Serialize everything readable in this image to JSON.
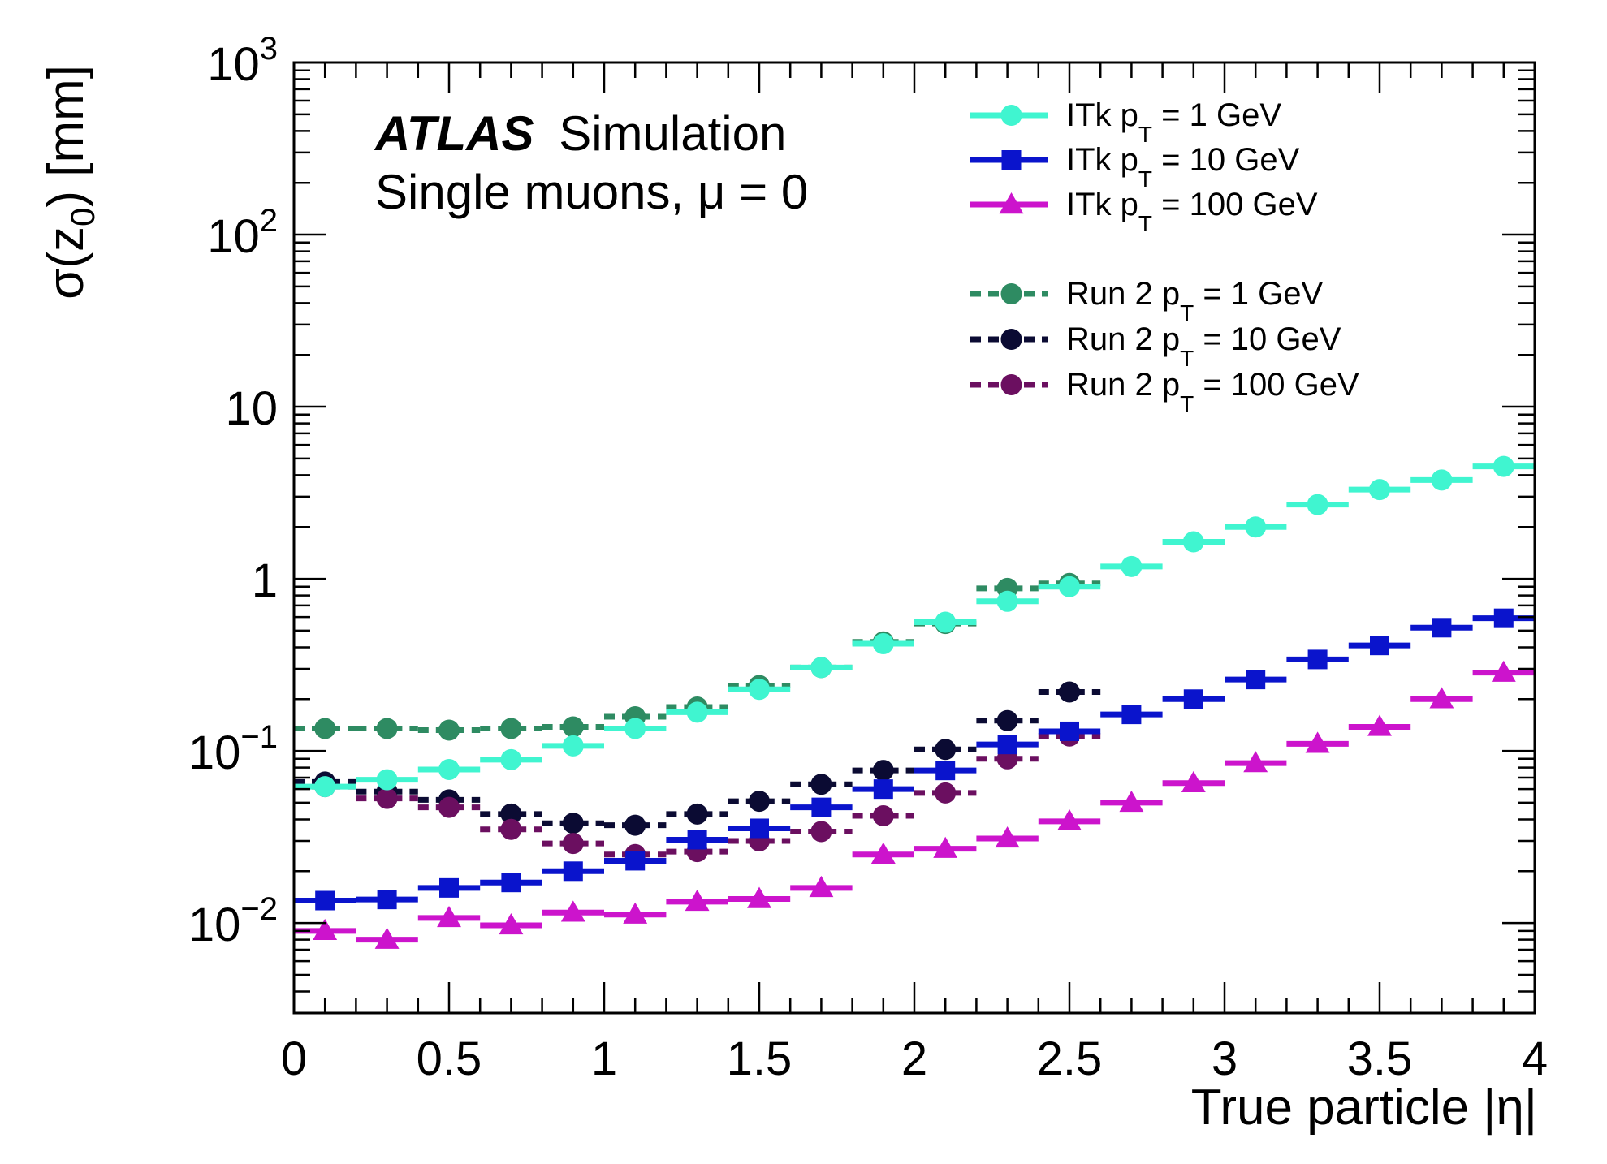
{
  "chart_data": {
    "type": "line",
    "title": "",
    "ylabel": "σ(z_0) [mm]",
    "xlabel": "True particle |η|",
    "xlim": [
      0,
      4
    ],
    "ylim": [
      0.003,
      1000
    ],
    "yscale": "log",
    "x_tick_labels": [
      "0",
      "0.5",
      "1",
      "1.5",
      "2",
      "2.5",
      "3",
      "3.5",
      "4"
    ],
    "y_tick_labels": [
      {
        "base": "10",
        "exp": "3"
      },
      {
        "base": "10",
        "exp": "2"
      },
      {
        "base": "10",
        "exp": ""
      },
      {
        "base": "1",
        "exp": ""
      },
      {
        "base": "10",
        "exp": "−1"
      },
      {
        "base": "10",
        "exp": "−2"
      }
    ],
    "annotations": {
      "atlas": "ATLAS",
      "simulation": "Simulation",
      "subtitle": "Single muons, μ = 0"
    },
    "bin_width": 0.2,
    "series": [
      {
        "name": "ITk  p_T = 1 GeV",
        "label_prefix": "ITk  p",
        "label_sub": "T",
        "label_suffix": " = 1 GeV",
        "color": "#40f5d0",
        "marker": "circle",
        "style": "solid",
        "x": [
          0.1,
          0.3,
          0.5,
          0.7,
          0.9,
          1.1,
          1.3,
          1.5,
          1.7,
          1.9,
          2.1,
          2.3,
          2.5,
          2.7,
          2.9,
          3.1,
          3.3,
          3.5,
          3.7,
          3.9
        ],
        "values": [
          0.062,
          0.068,
          0.078,
          0.089,
          0.107,
          0.135,
          0.168,
          0.228,
          0.305,
          0.42,
          0.56,
          0.74,
          0.9,
          1.18,
          1.64,
          2.0,
          2.7,
          3.3,
          3.75,
          4.5
        ]
      },
      {
        "name": "ITk  p_T = 10 GeV",
        "label_prefix": "ITk  p",
        "label_sub": "T",
        "label_suffix": " = 10 GeV",
        "color": "#0a14cc",
        "marker": "square",
        "style": "solid",
        "x": [
          0.1,
          0.3,
          0.5,
          0.7,
          0.9,
          1.1,
          1.3,
          1.5,
          1.7,
          1.9,
          2.1,
          2.3,
          2.5,
          2.7,
          2.9,
          3.1,
          3.3,
          3.5,
          3.7,
          3.9
        ],
        "values": [
          0.0135,
          0.0137,
          0.016,
          0.0172,
          0.02,
          0.023,
          0.0305,
          0.0355,
          0.047,
          0.06,
          0.077,
          0.109,
          0.13,
          0.163,
          0.2,
          0.26,
          0.34,
          0.41,
          0.52,
          0.59
        ]
      },
      {
        "name": "ITk  p_T = 100 GeV",
        "label_prefix": "ITk  p",
        "label_sub": "T",
        "label_suffix": " = 100 GeV",
        "color": "#cc14cc",
        "marker": "triangle",
        "style": "solid",
        "x": [
          0.1,
          0.3,
          0.5,
          0.7,
          0.9,
          1.1,
          1.3,
          1.5,
          1.7,
          1.9,
          2.1,
          2.3,
          2.5,
          2.7,
          2.9,
          3.1,
          3.3,
          3.5,
          3.7,
          3.9
        ],
        "values": [
          0.009,
          0.008,
          0.0107,
          0.0097,
          0.0115,
          0.0112,
          0.0133,
          0.0138,
          0.016,
          0.025,
          0.027,
          0.031,
          0.039,
          0.05,
          0.065,
          0.085,
          0.11,
          0.138,
          0.2,
          0.285
        ]
      },
      {
        "name": "Run 2 p_T = 1 GeV",
        "label_prefix": "Run 2 p",
        "label_sub": "T",
        "label_suffix": " = 1 GeV",
        "color": "#2e8b62",
        "marker": "circle",
        "style": "dashed",
        "x": [
          0.1,
          0.3,
          0.5,
          0.7,
          0.9,
          1.1,
          1.3,
          1.5,
          1.7,
          1.9,
          2.1,
          2.3,
          2.5
        ],
        "values": [
          0.135,
          0.135,
          0.132,
          0.135,
          0.138,
          0.158,
          0.18,
          0.24,
          0.305,
          0.43,
          0.55,
          0.88,
          0.94
        ]
      },
      {
        "name": "Run 2 p_T = 10 GeV",
        "label_prefix": "Run 2 p",
        "label_sub": "T",
        "label_suffix": " = 10 GeV",
        "color": "#0b0b33",
        "marker": "circle",
        "style": "dashed",
        "x": [
          0.1,
          0.3,
          0.5,
          0.7,
          0.9,
          1.1,
          1.3,
          1.5,
          1.7,
          1.9,
          2.1,
          2.3,
          2.5
        ],
        "values": [
          0.066,
          0.058,
          0.052,
          0.043,
          0.038,
          0.037,
          0.043,
          0.051,
          0.064,
          0.077,
          0.102,
          0.15,
          0.22
        ]
      },
      {
        "name": "Run 2 p_T = 100 GeV",
        "label_prefix": "Run 2 p",
        "label_sub": "T",
        "label_suffix": " = 100 GeV",
        "color": "#6b0f60",
        "marker": "circle",
        "style": "dashed",
        "x": [
          0.1,
          0.3,
          0.5,
          0.7,
          0.9,
          1.1,
          1.3,
          1.5,
          1.7,
          1.9,
          2.1,
          2.3,
          2.5
        ],
        "values": [
          0.062,
          0.053,
          0.047,
          0.035,
          0.029,
          0.025,
          0.026,
          0.03,
          0.034,
          0.042,
          0.057,
          0.09,
          0.122
        ]
      }
    ]
  }
}
